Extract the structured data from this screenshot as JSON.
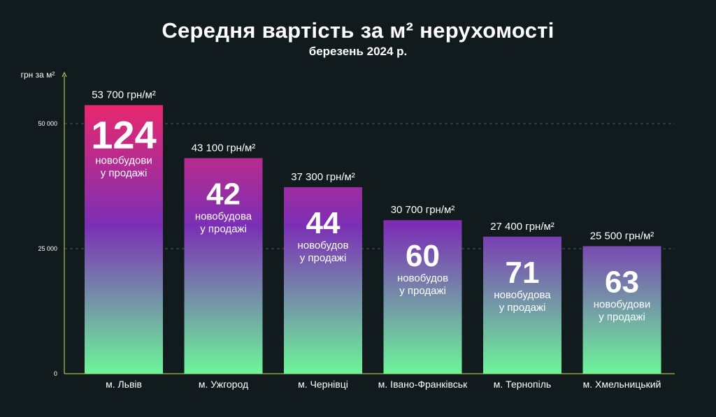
{
  "title": "Середня вартість за м² нерухомості",
  "subtitle": "березень 2024 р.",
  "colors": {
    "background": "#111a1c",
    "gradient_top": "#e8286e",
    "gradient_mid": "#7b2fb5",
    "gradient_bottom": "#6df59a",
    "axis": "#c8e65a"
  },
  "chart_data": {
    "type": "bar",
    "ylabel": "грн за м²",
    "ylim": [
      0,
      60000
    ],
    "yticks": [
      {
        "value": 0,
        "label": "0"
      },
      {
        "value": 25000,
        "label": "25 000"
      },
      {
        "value": 50000,
        "label": "50 000"
      }
    ],
    "grid": "dashed at 25 000 and 50 000",
    "categories": [
      "м. Львів",
      "м. Ужгород",
      "м. Чернівці",
      "м. Івано-Франківськ",
      "м. Тернопіль",
      "м. Хмельницький"
    ],
    "values": [
      53700,
      43100,
      37300,
      30700,
      27400,
      25500
    ],
    "value_labels": [
      "53 700 грн/м²",
      "43 100 грн/м²",
      "37 300 грн/м²",
      "30 700 грн/м²",
      "27 400 грн/м²",
      "25 500 грн/м²"
    ],
    "new_buildings": [
      124,
      42,
      44,
      60,
      71,
      63
    ],
    "new_buildings_line1": [
      "новобудови",
      "новобудова",
      "новобудов",
      "новобудов",
      "новобудова",
      "новобудови"
    ],
    "new_buildings_line2": [
      "у продажі",
      "у продажі",
      "у продажі",
      "у продажі",
      "у продажі",
      "у продажі"
    ]
  }
}
